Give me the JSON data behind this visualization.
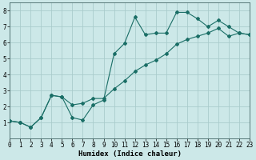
{
  "title": "",
  "xlabel": "Humidex (Indice chaleur)",
  "ylabel": "",
  "background_color": "#cce8e8",
  "grid_color": "#aacccc",
  "line_color": "#1a6e66",
  "x_data": [
    0,
    1,
    2,
    3,
    4,
    5,
    6,
    7,
    8,
    9,
    10,
    11,
    12,
    13,
    14,
    15,
    16,
    17,
    18,
    19,
    20,
    21,
    22,
    23
  ],
  "y_line1": [
    1.1,
    1.0,
    0.7,
    1.3,
    2.7,
    2.6,
    1.3,
    1.15,
    2.1,
    2.4,
    5.3,
    5.95,
    7.6,
    6.5,
    6.6,
    6.6,
    7.9,
    7.9,
    7.5,
    7.0,
    7.4,
    7.0,
    6.6,
    6.5
  ],
  "y_line2": [
    1.1,
    1.0,
    0.7,
    1.3,
    2.7,
    2.6,
    2.1,
    2.2,
    2.5,
    2.5,
    3.1,
    3.6,
    4.2,
    4.6,
    4.9,
    5.3,
    5.9,
    6.2,
    6.4,
    6.6,
    6.9,
    6.4,
    6.6,
    6.5
  ],
  "xlim": [
    0,
    23
  ],
  "ylim": [
    0,
    8.5
  ],
  "yticks": [
    1,
    2,
    3,
    4,
    5,
    6,
    7,
    8
  ],
  "xticks": [
    0,
    1,
    2,
    3,
    4,
    5,
    6,
    7,
    8,
    9,
    10,
    11,
    12,
    13,
    14,
    15,
    16,
    17,
    18,
    19,
    20,
    21,
    22,
    23
  ],
  "marker": "D",
  "marker_size": 2.0,
  "line_width": 0.8,
  "xlabel_fontsize": 6.5,
  "tick_fontsize": 5.5,
  "label_fontname": "monospace"
}
